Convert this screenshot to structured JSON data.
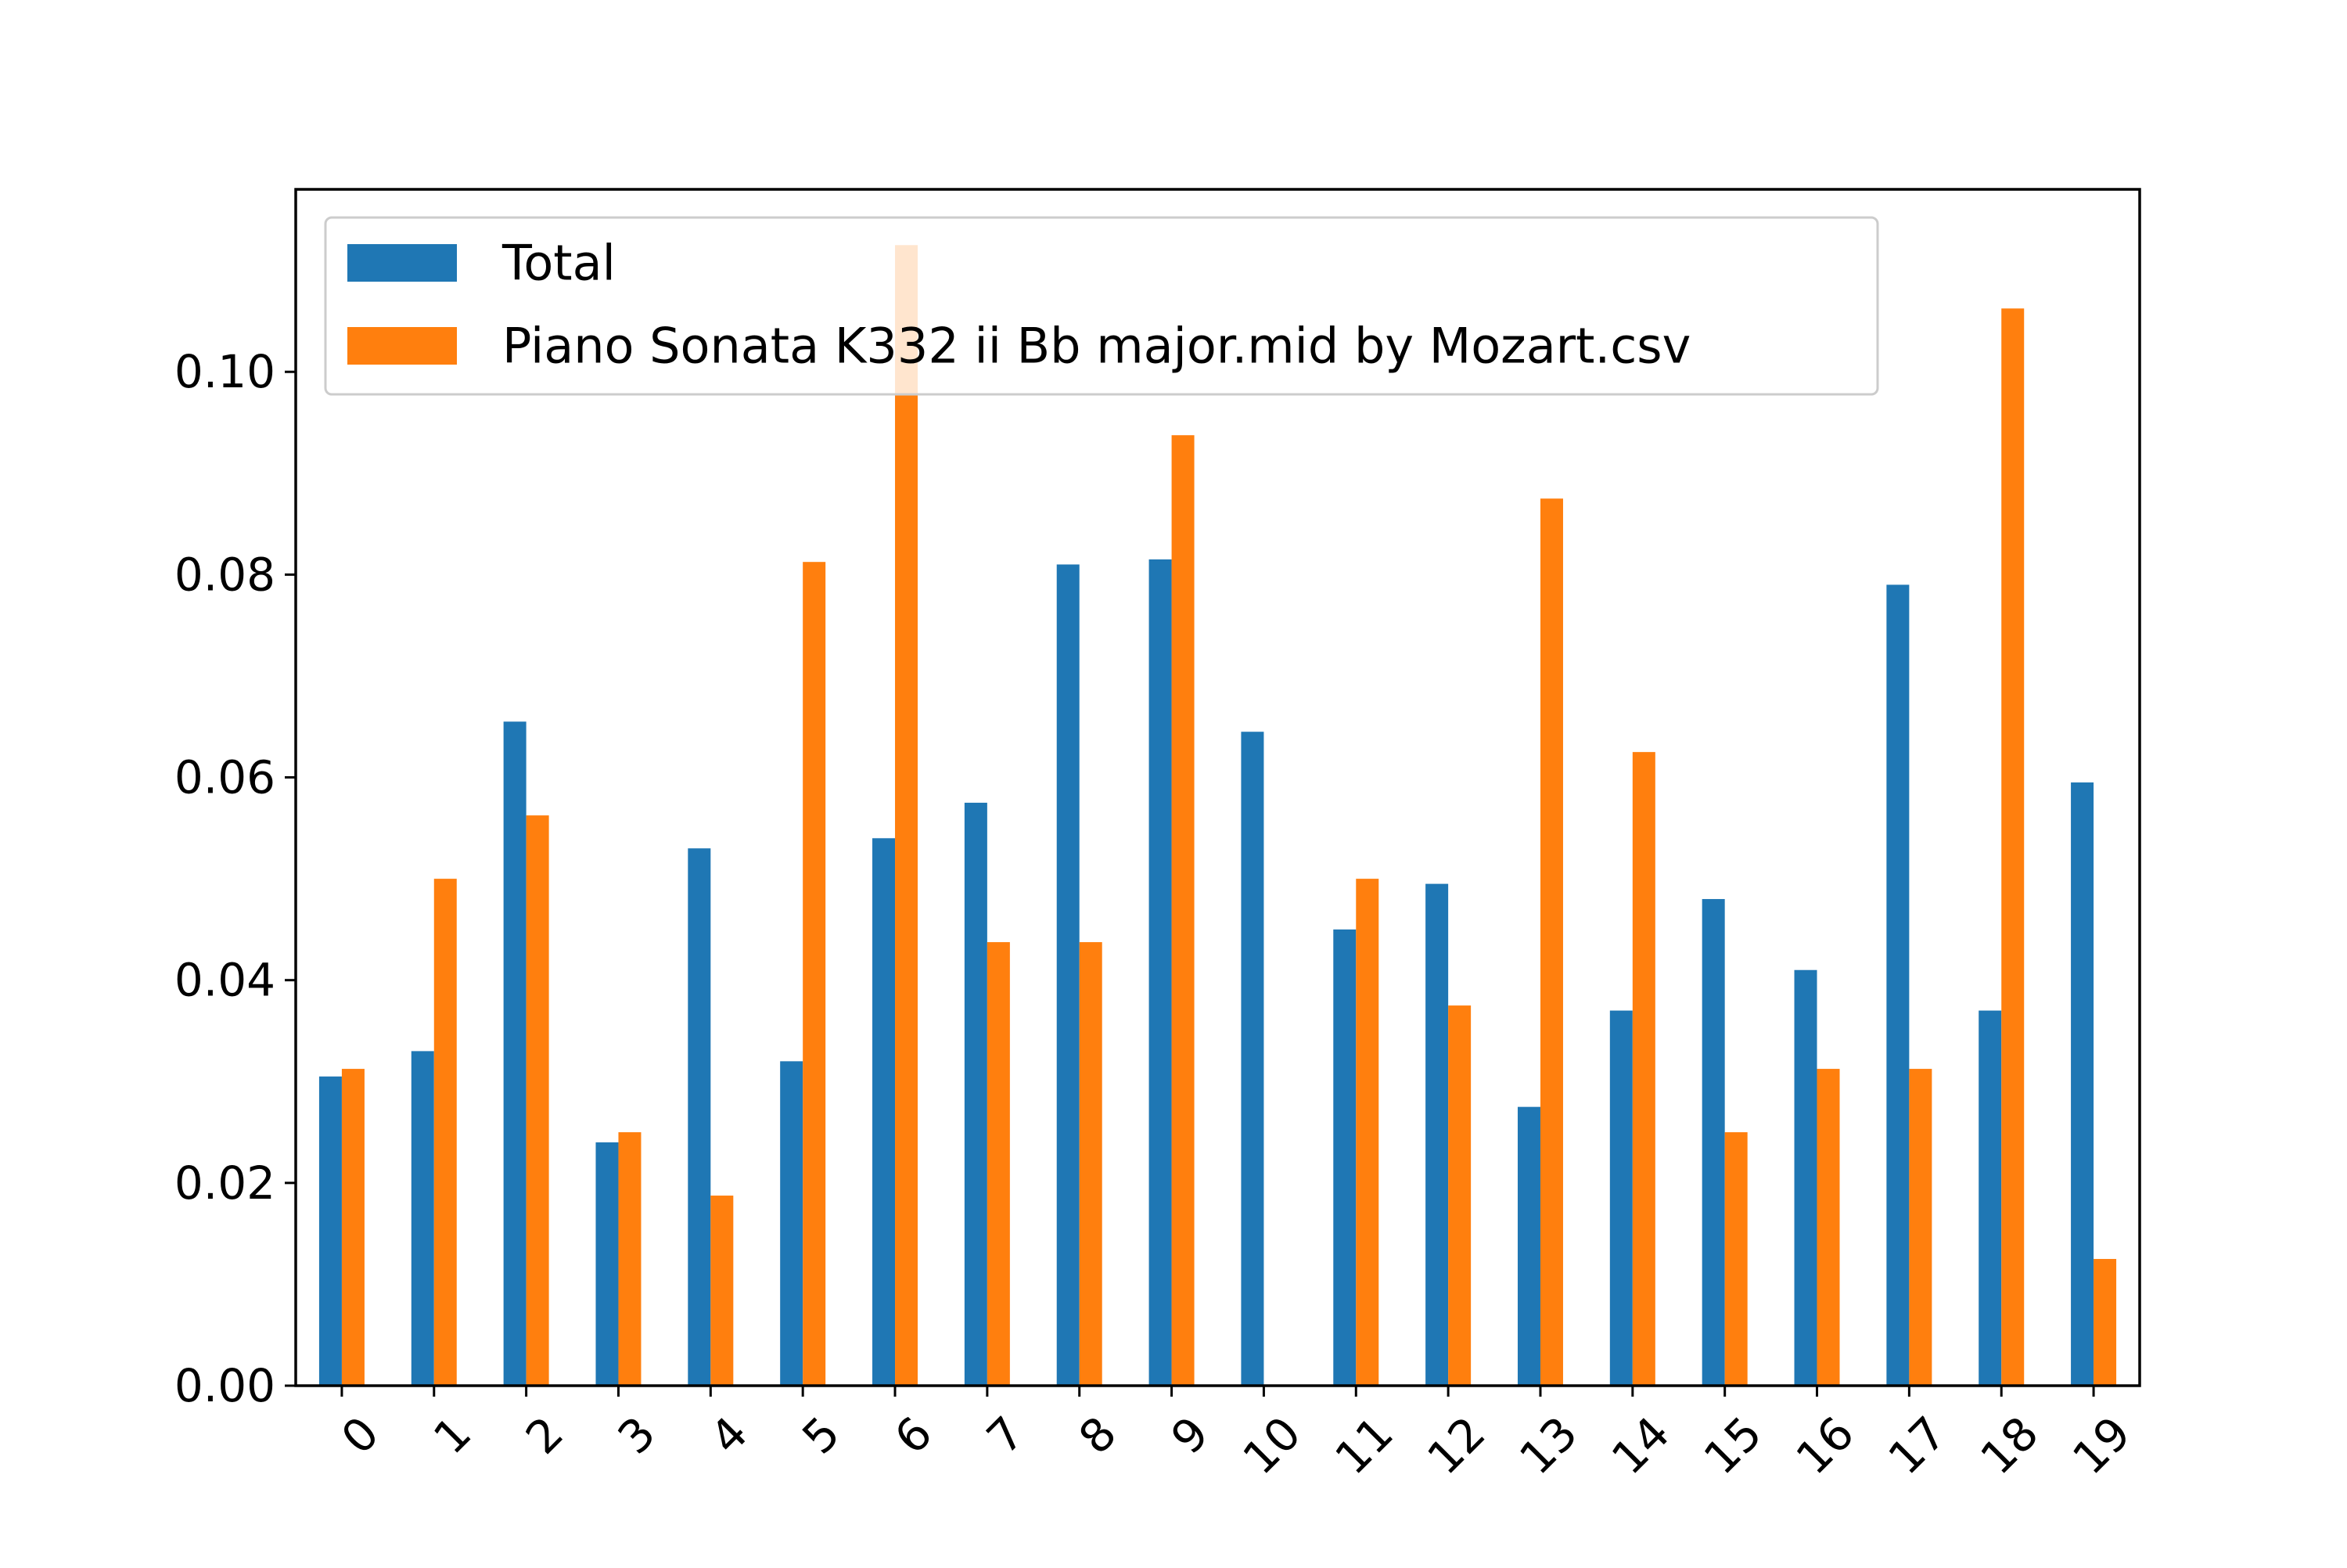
{
  "chart_data": {
    "type": "bar",
    "title": "",
    "xlabel": "",
    "ylabel": "",
    "categories": [
      "0",
      "1",
      "2",
      "3",
      "4",
      "5",
      "6",
      "7",
      "8",
      "9",
      "10",
      "11",
      "12",
      "13",
      "14",
      "15",
      "16",
      "17",
      "18",
      "19"
    ],
    "series": [
      {
        "name": "Total",
        "color": "#1f77b4",
        "values": [
          0.0305,
          0.033,
          0.0655,
          0.024,
          0.053,
          0.032,
          0.054,
          0.0575,
          0.081,
          0.0815,
          0.0645,
          0.045,
          0.0495,
          0.0275,
          0.037,
          0.048,
          0.041,
          0.079,
          0.037,
          0.0595
        ]
      },
      {
        "name": "Piano Sonata K332 ii Bb major.mid by Mozart.csv",
        "color": "#ff7f0e",
        "values": [
          0.03125,
          0.05,
          0.05625,
          0.025,
          0.01875,
          0.08125,
          0.1125,
          0.04375,
          0.04375,
          0.09375,
          0.0,
          0.05,
          0.0375,
          0.0875,
          0.0625,
          0.025,
          0.03125,
          0.03125,
          0.10625,
          0.0125
        ]
      }
    ],
    "ylim": [
      0,
      0.118
    ],
    "yticks": [
      0.0,
      0.02,
      0.04,
      0.06,
      0.08,
      0.1
    ],
    "ytick_labels": [
      "0.00",
      "0.02",
      "0.04",
      "0.06",
      "0.08",
      "0.10"
    ],
    "xtick_rotation": "45 degrees",
    "grid": false,
    "legend_position": "upper-left"
  }
}
